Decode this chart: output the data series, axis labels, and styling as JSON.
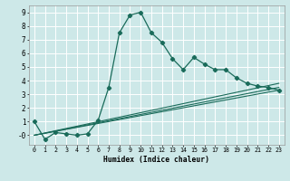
{
  "xlabel": "Humidex (Indice chaleur)",
  "bg_color": "#cde8e8",
  "line_color": "#1a6b5a",
  "grid_color": "#ffffff",
  "xlim": [
    -0.5,
    23.5
  ],
  "ylim": [
    -0.7,
    9.5
  ],
  "xtick_vals": [
    0,
    1,
    2,
    3,
    4,
    5,
    6,
    7,
    8,
    9,
    10,
    11,
    12,
    13,
    14,
    15,
    16,
    17,
    18,
    19,
    20,
    21,
    22,
    23
  ],
  "xtick_labels": [
    "0",
    "1",
    "2",
    "3",
    "4",
    "5",
    "6",
    "7",
    "8",
    "9",
    "10",
    "11",
    "12",
    "13",
    "14",
    "15",
    "16",
    "17",
    "18",
    "19",
    "20",
    "21",
    "22",
    "23"
  ],
  "ytick_vals": [
    0,
    1,
    2,
    3,
    4,
    5,
    6,
    7,
    8,
    9
  ],
  "ytick_labels": [
    "-0",
    "1",
    "2",
    "3",
    "4",
    "5",
    "6",
    "7",
    "8",
    "9"
  ],
  "series_main_x": [
    0,
    1,
    2,
    3,
    4,
    5,
    6,
    7,
    8,
    9,
    10,
    11,
    12,
    13,
    14,
    15,
    16,
    17,
    18,
    19,
    20,
    21,
    22,
    23
  ],
  "series_main_y": [
    1.0,
    -0.3,
    0.2,
    0.1,
    0.0,
    0.1,
    1.1,
    3.5,
    7.5,
    8.8,
    9.0,
    7.5,
    6.8,
    5.6,
    4.8,
    5.7,
    5.2,
    4.8,
    4.8,
    4.2,
    3.8,
    3.6,
    3.5,
    3.3
  ],
  "line1_x": [
    0,
    23
  ],
  "line1_y": [
    0.0,
    3.5
  ],
  "line2_x": [
    0,
    23
  ],
  "line2_y": [
    0.0,
    3.3
  ],
  "line3_x": [
    0,
    23
  ],
  "line3_y": [
    0.0,
    3.8
  ]
}
